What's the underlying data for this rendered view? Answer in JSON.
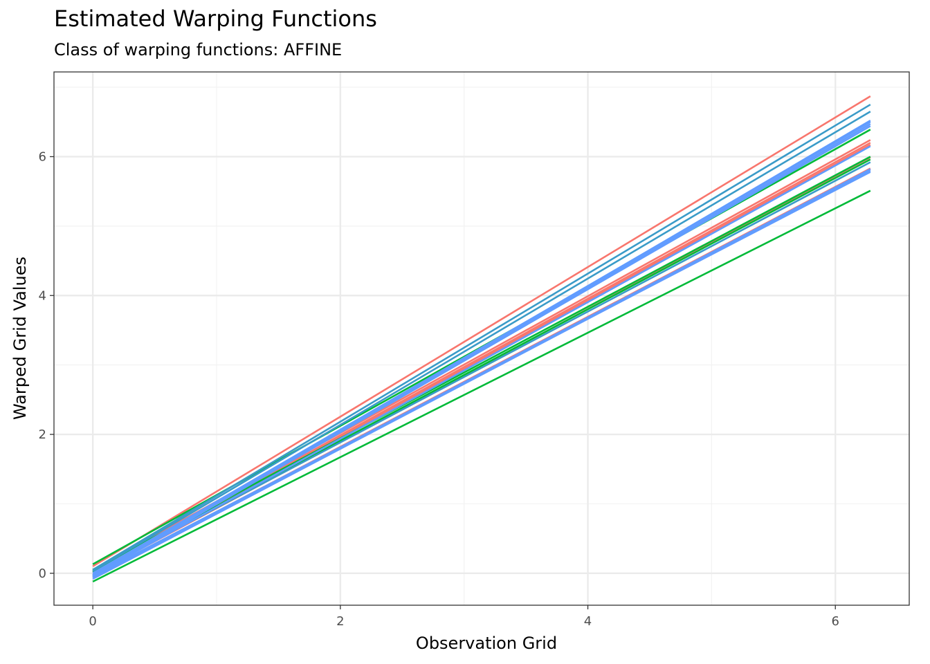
{
  "chart_data": {
    "type": "line",
    "title": "Estimated Warping Functions",
    "subtitle": "Class of warping functions: AFFINE",
    "xlabel": "Observation Grid",
    "ylabel": "Warped Grid Values",
    "xlim": [
      -0.314,
      6.597
    ],
    "ylim": [
      -0.46,
      7.22
    ],
    "x_ticks": [
      0,
      2,
      4,
      6
    ],
    "y_ticks": [
      0,
      2,
      4,
      6
    ],
    "grid": true,
    "legend": "none",
    "colors": {
      "red": "#F8766D",
      "green": "#00BA38",
      "blue": "#619CFF",
      "teal": "#3A9BC8"
    },
    "x": [
      0,
      6.283
    ],
    "series": [
      {
        "color": "#F8766D",
        "values": [
          0.1,
          6.87
        ]
      },
      {
        "color": "#F8766D",
        "values": [
          0.05,
          6.24
        ]
      },
      {
        "color": "#F8766D",
        "values": [
          0.02,
          6.2
        ]
      },
      {
        "color": "#F8766D",
        "values": [
          0.0,
          6.17
        ]
      },
      {
        "color": "#F8766D",
        "values": [
          -0.02,
          5.99
        ]
      },
      {
        "color": "#F8766D",
        "values": [
          -0.05,
          5.83
        ]
      },
      {
        "color": "#00BA38",
        "values": [
          0.13,
          6.39
        ]
      },
      {
        "color": "#00BA38",
        "values": [
          0.05,
          6.0
        ]
      },
      {
        "color": "#00BA38",
        "values": [
          0.02,
          5.96
        ]
      },
      {
        "color": "#00BA38",
        "values": [
          -0.12,
          5.51
        ]
      },
      {
        "color": "#3A9BC8",
        "values": [
          0.05,
          6.75
        ]
      },
      {
        "color": "#3A9BC8",
        "values": [
          0.03,
          6.65
        ]
      },
      {
        "color": "#3A9BC8",
        "values": [
          0.0,
          5.92
        ]
      },
      {
        "color": "#619CFF",
        "values": [
          0.0,
          6.5
        ]
      },
      {
        "color": "#619CFF",
        "values": [
          -0.02,
          6.47
        ]
      },
      {
        "color": "#619CFF",
        "values": [
          -0.03,
          6.44
        ]
      },
      {
        "color": "#619CFF",
        "values": [
          -0.05,
          6.52
        ]
      },
      {
        "color": "#619CFF",
        "values": [
          -0.03,
          6.15
        ]
      },
      {
        "color": "#619CFF",
        "values": [
          -0.06,
          5.82
        ]
      },
      {
        "color": "#619CFF",
        "values": [
          -0.08,
          5.8
        ]
      },
      {
        "color": "#619CFF",
        "values": [
          -0.04,
          5.78
        ]
      }
    ]
  }
}
